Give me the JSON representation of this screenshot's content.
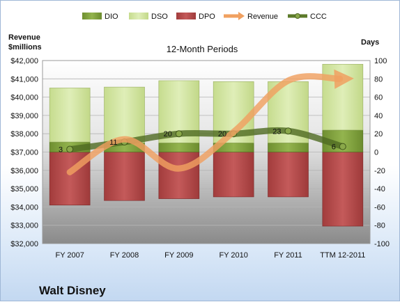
{
  "company": "Walt Disney",
  "chart_data": {
    "type": "bar",
    "subtitle": "12-Month Periods",
    "left_axis": {
      "label_line1": "Revenue",
      "label_line2": "$millions",
      "min": 32000,
      "max": 42000,
      "step": 1000
    },
    "right_axis": {
      "label": "Days",
      "min": -100,
      "max": 100,
      "step": 20
    },
    "categories": [
      "FY 2007",
      "FY 2008",
      "FY 2009",
      "FY 2010",
      "FY 2011",
      "TTM 12-2011"
    ],
    "legend": {
      "position": "top",
      "items": [
        "DIO",
        "DSO",
        "DPO",
        "Revenue",
        "CCC"
      ]
    },
    "series": [
      {
        "name": "DIO",
        "axis": "right",
        "color": "#7e9e3c",
        "values": [
          11,
          10,
          10,
          10,
          10,
          24
        ]
      },
      {
        "name": "DSO",
        "axis": "right",
        "color": "#d4e6a5",
        "values": [
          59,
          61,
          68,
          67,
          67,
          72
        ]
      },
      {
        "name": "DPO",
        "axis": "right",
        "color": "#b54a4a",
        "values": [
          -58,
          -53,
          -51,
          -49,
          -49,
          -81
        ]
      },
      {
        "name": "Revenue",
        "axis": "left",
        "color": "#f0a060",
        "values": [
          35900,
          37700,
          36100,
          38100,
          40900,
          41000
        ]
      },
      {
        "name": "CCC",
        "axis": "right",
        "color": "#5c7a29",
        "values": [
          3,
          11,
          20,
          20,
          23,
          6
        ],
        "labels": [
          "3",
          "11",
          "20",
          "20",
          "23",
          "6"
        ]
      }
    ]
  }
}
